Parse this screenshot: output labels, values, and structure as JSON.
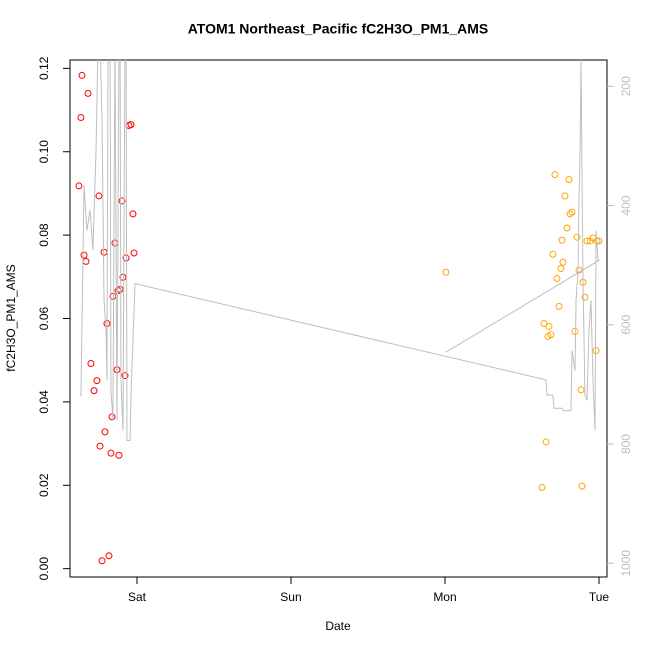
{
  "chart_data": {
    "type": "scatter",
    "title": "ATOM1 Northeast_Pacific fC2H3O_PM1_AMS",
    "xlabel": "Date",
    "ylabel": "fC2H3O_PM1_AMS",
    "xlim": [
      -0.435,
      3.052
    ],
    "xticks": [
      {
        "value": 0,
        "label": "Sat"
      },
      {
        "value": 1,
        "label": "Sun"
      },
      {
        "value": 2,
        "label": "Mon"
      },
      {
        "value": 3,
        "label": "Tue"
      }
    ],
    "ylim": [
      -0.002,
      0.122
    ],
    "yticks": [
      {
        "value": 0,
        "label": "0.00"
      },
      {
        "value": 0.02,
        "label": "0.02"
      },
      {
        "value": 0.04,
        "label": "0.04"
      },
      {
        "value": 0.06,
        "label": "0.06"
      },
      {
        "value": 0.08,
        "label": "0.08"
      },
      {
        "value": 0.1,
        "label": "0.10"
      },
      {
        "value": 0.12,
        "label": "0.12"
      }
    ],
    "y2lim": [
      1023,
      156
    ],
    "y2ticks": [
      200,
      400,
      600,
      800,
      1000
    ],
    "y2color": "#bebebe",
    "series": [
      {
        "type": "scatter",
        "color": "#ff0000",
        "x": [
          -0.377,
          -0.364,
          -0.357,
          -0.344,
          -0.331,
          -0.318,
          -0.299,
          -0.279,
          -0.26,
          -0.247,
          -0.24,
          -0.227,
          -0.214,
          -0.208,
          -0.195,
          -0.182,
          -0.169,
          -0.162,
          -0.156,
          -0.143,
          -0.13,
          -0.123,
          -0.117,
          -0.11,
          -0.097,
          -0.091,
          -0.078,
          -0.071,
          -0.052,
          -0.039,
          -0.026,
          -0.019
        ],
        "values": [
          0.0918,
          0.1082,
          0.1183,
          0.0752,
          0.0737,
          0.114,
          0.0492,
          0.0427,
          0.0451,
          0.0894,
          0.0294,
          0.0019,
          0.0759,
          0.0328,
          0.0588,
          0.0031,
          0.0277,
          0.0364,
          0.0653,
          0.0781,
          0.0477,
          0.0667,
          0.0272,
          0.067,
          0.0882,
          0.0699,
          0.0463,
          0.0745,
          0.1063,
          0.1065,
          0.0851,
          0.0757
        ]
      },
      {
        "type": "scatter",
        "color": "#ffa500",
        "x": [
          2.006,
          2.63,
          2.643,
          2.656,
          2.669,
          2.675,
          2.688,
          2.701,
          2.714,
          2.727,
          2.74,
          2.753,
          2.76,
          2.766,
          2.779,
          2.792,
          2.805,
          2.812,
          2.825,
          2.844,
          2.857,
          2.87,
          2.883,
          2.89,
          2.896,
          2.909,
          2.922,
          2.942,
          2.961,
          2.981,
          2.987,
          3.0
        ],
        "values": [
          0.0711,
          0.0195,
          0.0588,
          0.0304,
          0.0557,
          0.0581,
          0.0561,
          0.0754,
          0.0945,
          0.0696,
          0.0629,
          0.072,
          0.0788,
          0.0735,
          0.0894,
          0.0817,
          0.0933,
          0.0851,
          0.0855,
          0.0569,
          0.0795,
          0.0716,
          0.0429,
          0.0198,
          0.0687,
          0.0651,
          0.0786,
          0.0786,
          0.0793,
          0.0523,
          0.0786,
          0.0786
        ]
      },
      {
        "type": "line",
        "axis": "y2",
        "color": "#bebebe",
        "x": [
          -0.37,
          -0.364,
          -0.344,
          -0.325,
          -0.305,
          -0.286,
          -0.266,
          -0.253,
          -0.24,
          -0.227,
          -0.214,
          -0.201,
          -0.195,
          -0.188,
          -0.175,
          -0.169,
          -0.156,
          -0.143,
          -0.13,
          -0.117,
          -0.11,
          -0.104,
          -0.091,
          -0.078,
          -0.071,
          -0.065,
          -0.045,
          -0.039,
          -0.013,
          2.617,
          2.623,
          2.656,
          2.662,
          2.701,
          2.708,
          2.76,
          2.766,
          2.818,
          2.825,
          2.844,
          2.851,
          2.864,
          2.87,
          2.877,
          2.883,
          2.896,
          2.909,
          2.922,
          2.935,
          2.948,
          2.961,
          2.974,
          2.981,
          2.994,
          3.0,
          2.006
        ],
        "values": [
          719,
          719,
          366,
          442,
          408,
          475,
          307,
          123,
          123,
          257,
          559,
          609,
          693,
          123,
          89,
          710,
          760,
          123,
          760,
          123,
          123,
          693,
          777,
          123,
          123,
          794,
          794,
          719,
          531,
          690,
          690,
          693,
          718,
          718,
          740,
          740,
          744,
          744,
          643,
          677,
          559,
          509,
          391,
          307,
          156,
          526,
          718,
          727,
          609,
          559,
          693,
          777,
          442,
          492,
          492,
          646
        ]
      }
    ]
  }
}
